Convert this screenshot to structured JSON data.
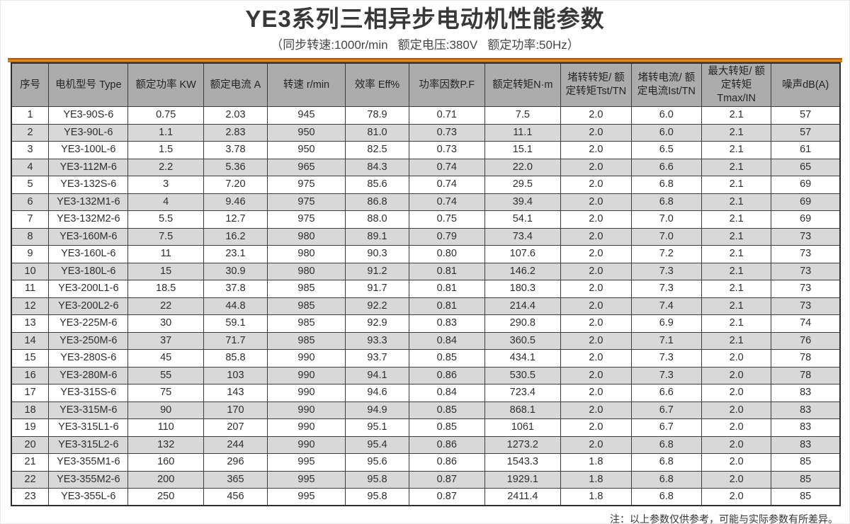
{
  "page": {
    "title": "YE3系列三相异步电动机性能参数",
    "subtitle": "（同步转速:1000r/min   额定电压:380V   额定功率:50Hz）",
    "note": "注：以上参数仅供参考，可能与实际参数有所差异。"
  },
  "colors": {
    "accent_orange": "#E0831B",
    "header_gray": "#ACACAC",
    "row_alt_gray": "#D8D8D8",
    "border_dark": "#3C3C3C"
  },
  "table": {
    "headers": [
      "序号",
      "电机型号 Type",
      "额定功率 KW",
      "额定电流 A",
      "转速 r/min",
      "效率 Eff%",
      "功率因数P.F",
      "额定转矩N·m",
      "堵转转矩/ 额定转矩Tst/TN",
      "堵转电流/ 额定电流Ist/TN",
      "最大转矩/ 额定转矩Tmax/IN",
      "噪声dB(A)"
    ],
    "rows": [
      [
        "1",
        "YE3-90S-6",
        "0.75",
        "2.03",
        "945",
        "78.9",
        "0.71",
        "7.5",
        "2.0",
        "6.0",
        "2.1",
        "57"
      ],
      [
        "2",
        "YE3-90L-6",
        "1.1",
        "2.83",
        "950",
        "81.0",
        "0.73",
        "11.1",
        "2.0",
        "6.0",
        "2.1",
        "57"
      ],
      [
        "3",
        "YE3-100L-6",
        "1.5",
        "3.78",
        "950",
        "82.5",
        "0.73",
        "15.1",
        "2.0",
        "6.5",
        "2.1",
        "61"
      ],
      [
        "4",
        "YE3-112M-6",
        "2.2",
        "5.36",
        "965",
        "84.3",
        "0.74",
        "22.0",
        "2.0",
        "6.6",
        "2.1",
        "65"
      ],
      [
        "5",
        "YE3-132S-6",
        "3",
        "7.20",
        "975",
        "85.6",
        "0.74",
        "29.5",
        "2.0",
        "6.8",
        "2.1",
        "69"
      ],
      [
        "6",
        "YE3-132M1-6",
        "4",
        "9.46",
        "975",
        "86.8",
        "0.74",
        "39.4",
        "2.0",
        "6.8",
        "2.1",
        "69"
      ],
      [
        "7",
        "YE3-132M2-6",
        "5.5",
        "12.7",
        "975",
        "88.0",
        "0.75",
        "54.1",
        "2.0",
        "7.0",
        "2.1",
        "69"
      ],
      [
        "8",
        "YE3-160M-6",
        "7.5",
        "16.2",
        "980",
        "89.1",
        "0.79",
        "73.4",
        "2.0",
        "7.0",
        "2.1",
        "73"
      ],
      [
        "9",
        "YE3-160L-6",
        "11",
        "23.1",
        "980",
        "90.3",
        "0.80",
        "107.6",
        "2.0",
        "7.2",
        "2.1",
        "73"
      ],
      [
        "10",
        "YE3-180L-6",
        "15",
        "30.9",
        "980",
        "91.2",
        "0.81",
        "146.2",
        "2.0",
        "7.3",
        "2.1",
        "73"
      ],
      [
        "11",
        "YE3-200L1-6",
        "18.5",
        "37.8",
        "985",
        "91.7",
        "0.81",
        "180.3",
        "2.0",
        "7.3",
        "2.1",
        "73"
      ],
      [
        "12",
        "YE3-200L2-6",
        "22",
        "44.8",
        "985",
        "92.2",
        "0.81",
        "214.4",
        "2.0",
        "7.4",
        "2.1",
        "73"
      ],
      [
        "13",
        "YE3-225M-6",
        "30",
        "59.1",
        "985",
        "92.9",
        "0.83",
        "290.8",
        "2.0",
        "6.9",
        "2.1",
        "74"
      ],
      [
        "14",
        "YE3-250M-6",
        "37",
        "71.7",
        "985",
        "93.3",
        "0.84",
        "360.5",
        "2.0",
        "7.1",
        "2.1",
        "76"
      ],
      [
        "15",
        "YE3-280S-6",
        "45",
        "85.8",
        "990",
        "93.7",
        "0.85",
        "434.1",
        "2.0",
        "7.3",
        "2.0",
        "78"
      ],
      [
        "16",
        "YE3-280M-6",
        "55",
        "103",
        "990",
        "94.1",
        "0.86",
        "530.5",
        "2.0",
        "7.3",
        "2.0",
        "78"
      ],
      [
        "17",
        "YE3-315S-6",
        "75",
        "143",
        "990",
        "94.6",
        "0.84",
        "723.4",
        "2.0",
        "6.6",
        "2.0",
        "83"
      ],
      [
        "18",
        "YE3-315M-6",
        "90",
        "170",
        "990",
        "94.9",
        "0.85",
        "868.1",
        "2.0",
        "6.7",
        "2.0",
        "83"
      ],
      [
        "19",
        "YE3-315L1-6",
        "110",
        "207",
        "990",
        "95.1",
        "0.85",
        "1061",
        "2.0",
        "6.7",
        "2.0",
        "83"
      ],
      [
        "20",
        "YE3-315L2-6",
        "132",
        "244",
        "990",
        "95.4",
        "0.86",
        "1273.2",
        "2.0",
        "6.8",
        "2.0",
        "83"
      ],
      [
        "21",
        "YE3-355M1-6",
        "160",
        "296",
        "995",
        "95.6",
        "0.86",
        "1543.3",
        "1.8",
        "6.8",
        "2.0",
        "85"
      ],
      [
        "22",
        "YE3-355M2-6",
        "200",
        "365",
        "995",
        "95.8",
        "0.87",
        "1929.1",
        "1.8",
        "6.8",
        "2.0",
        "85"
      ],
      [
        "23",
        "YE3-355L-6",
        "250",
        "456",
        "995",
        "95.8",
        "0.87",
        "2411.4",
        "1.8",
        "6.8",
        "2.0",
        "85"
      ]
    ]
  }
}
